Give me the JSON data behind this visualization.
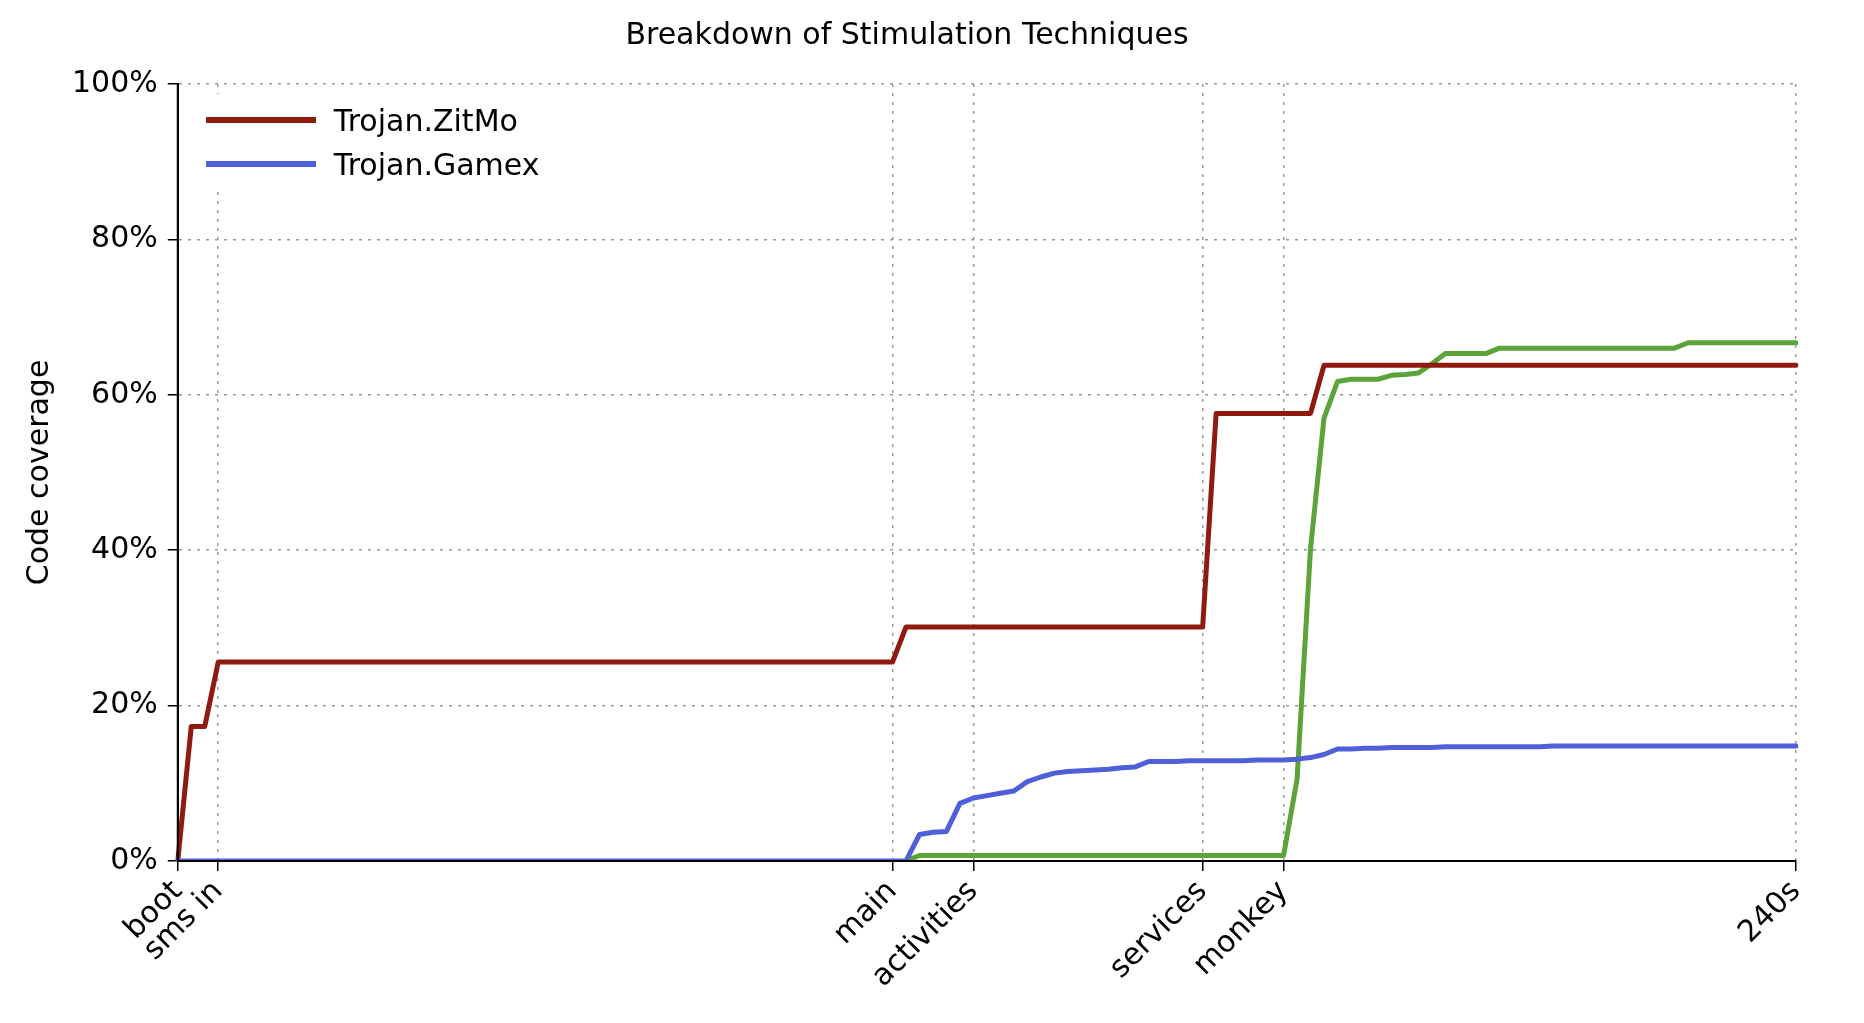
{
  "chart_data": {
    "type": "line",
    "title": "Breakdown of Stimulation Techniques",
    "ylabel": "Code coverage",
    "categories": [
      "boot",
      null,
      null,
      "sms in",
      null,
      null,
      null,
      null,
      null,
      null,
      null,
      null,
      null,
      null,
      null,
      null,
      null,
      null,
      null,
      null,
      null,
      null,
      null,
      null,
      null,
      null,
      null,
      null,
      null,
      null,
      null,
      null,
      null,
      null,
      null,
      null,
      null,
      null,
      null,
      null,
      null,
      null,
      null,
      null,
      null,
      null,
      null,
      null,
      null,
      null,
      null,
      null,
      null,
      "main",
      null,
      null,
      null,
      null,
      null,
      "activities",
      null,
      null,
      null,
      null,
      null,
      null,
      null,
      null,
      null,
      null,
      null,
      null,
      null,
      null,
      null,
      null,
      "services",
      null,
      null,
      null,
      null,
      null,
      "monkey",
      null,
      null,
      null,
      null,
      null,
      null,
      null,
      null,
      null,
      null,
      null,
      null,
      null,
      null,
      null,
      null,
      null,
      null,
      null,
      null,
      null,
      null,
      null,
      null,
      null,
      null,
      null,
      null,
      null,
      null,
      null,
      null,
      null,
      null,
      null,
      null,
      null,
      "240s"
    ],
    "ylim": [
      0,
      100
    ],
    "yticks": [
      {
        "value": 0,
        "label": "0%"
      },
      {
        "value": 20,
        "label": "20%"
      },
      {
        "value": 40,
        "label": "40%"
      },
      {
        "value": 60,
        "label": "60%"
      },
      {
        "value": 80,
        "label": "80%"
      },
      {
        "value": 100,
        "label": "100%"
      }
    ],
    "grid": true,
    "legend": "top left",
    "line_style": "solid",
    "series": [
      {
        "color": "#5ca33a",
        "values": [
          null,
          null,
          null,
          null,
          null,
          null,
          null,
          null,
          null,
          null,
          null,
          null,
          null,
          null,
          null,
          null,
          null,
          null,
          null,
          null,
          null,
          null,
          null,
          null,
          null,
          null,
          null,
          null,
          null,
          null,
          null,
          null,
          null,
          null,
          null,
          null,
          null,
          null,
          null,
          null,
          null,
          null,
          null,
          null,
          null,
          null,
          null,
          null,
          null,
          null,
          null,
          null,
          null,
          null,
          0,
          0.7,
          0.7,
          0.7,
          0.7,
          0.7,
          0.7,
          0.7,
          0.7,
          0.7,
          0.7,
          0.7,
          0.7,
          0.7,
          0.7,
          0.7,
          0.7,
          0.7,
          0.7,
          0.7,
          0.7,
          0.7,
          0.7,
          0.7,
          0.7,
          0.7,
          0.7,
          0.7,
          0.7,
          10.5,
          40.2,
          57,
          61.7,
          62,
          62,
          62,
          62.5,
          62.6,
          62.8,
          64,
          65.3,
          65.3,
          65.3,
          65.3,
          66,
          66,
          66,
          66,
          66,
          66,
          66,
          66,
          66,
          66,
          66,
          66,
          66,
          66,
          66.7,
          66.7,
          66.7,
          66.7,
          66.7,
          66.7,
          66.7,
          66.7,
          66.7
        ]
      },
      {
        "name": "Trojan.ZitMo",
        "color": "#8e1a10",
        "values": [
          0,
          17.3,
          17.3,
          25.6,
          25.6,
          25.6,
          25.6,
          25.6,
          25.6,
          25.6,
          25.6,
          25.6,
          25.6,
          25.6,
          25.6,
          25.6,
          25.6,
          25.6,
          25.6,
          25.6,
          25.6,
          25.6,
          25.6,
          25.6,
          25.6,
          25.6,
          25.6,
          25.6,
          25.6,
          25.6,
          25.6,
          25.6,
          25.6,
          25.6,
          25.6,
          25.6,
          25.6,
          25.6,
          25.6,
          25.6,
          25.6,
          25.6,
          25.6,
          25.6,
          25.6,
          25.6,
          25.6,
          25.6,
          25.6,
          25.6,
          25.6,
          25.6,
          25.6,
          25.6,
          30.1,
          30.1,
          30.1,
          30.1,
          30.1,
          30.1,
          30.1,
          30.1,
          30.1,
          30.1,
          30.1,
          30.1,
          30.1,
          30.1,
          30.1,
          30.1,
          30.1,
          30.1,
          30.1,
          30.1,
          30.1,
          30.1,
          30.1,
          57.6,
          57.6,
          57.6,
          57.6,
          57.6,
          57.6,
          57.6,
          57.6,
          63.8,
          63.8,
          63.8,
          63.8,
          63.8,
          63.8,
          63.8,
          63.8,
          63.8,
          63.8,
          63.8,
          63.8,
          63.8,
          63.8,
          63.8,
          63.8,
          63.8,
          63.8,
          63.8,
          63.8,
          63.8,
          63.8,
          63.8,
          63.8,
          63.8,
          63.8,
          63.8,
          63.8,
          63.8,
          63.8,
          63.8,
          63.8,
          63.8,
          63.8,
          63.8,
          63.8
        ]
      },
      {
        "name": "Trojan.Gamex",
        "color": "#4f5fd9",
        "values": [
          0,
          0,
          0,
          0,
          0,
          0,
          0,
          0,
          0,
          0,
          0,
          0,
          0,
          0,
          0,
          0,
          0,
          0,
          0,
          0,
          0,
          0,
          0,
          0,
          0,
          0,
          0,
          0,
          0,
          0,
          0,
          0,
          0,
          0,
          0,
          0,
          0,
          0,
          0,
          0,
          0,
          0,
          0,
          0,
          0,
          0,
          0,
          0,
          0,
          0,
          0,
          0,
          0,
          0,
          0,
          3.4,
          3.7,
          3.8,
          7.4,
          8.1,
          8.4,
          8.7,
          9.0,
          10.2,
          10.8,
          11.3,
          11.5,
          11.6,
          11.7,
          11.8,
          12,
          12.1,
          12.8,
          12.8,
          12.8,
          12.9,
          12.9,
          12.9,
          12.9,
          12.9,
          13,
          13,
          13,
          13.1,
          13.3,
          13.7,
          14.4,
          14.4,
          14.5,
          14.5,
          14.6,
          14.6,
          14.6,
          14.6,
          14.7,
          14.7,
          14.7,
          14.7,
          14.7,
          14.7,
          14.7,
          14.7,
          14.8,
          14.8,
          14.8,
          14.8,
          14.8,
          14.8,
          14.8,
          14.8,
          14.8,
          14.8,
          14.8,
          14.8,
          14.8,
          14.8,
          14.8,
          14.8,
          14.8,
          14.8,
          14.8
        ]
      }
    ]
  }
}
